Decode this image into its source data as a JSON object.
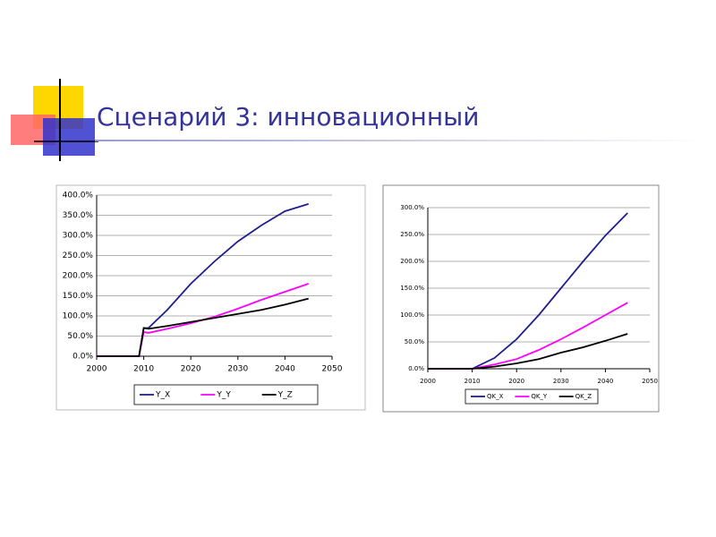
{
  "slide": {
    "title": "Сценарий 3: инновационный"
  },
  "chart_data": [
    {
      "type": "line",
      "grid": true,
      "x": [
        2000,
        2005,
        2009,
        2010,
        2011,
        2015,
        2020,
        2025,
        2030,
        2035,
        2040,
        2045
      ],
      "series": [
        {
          "name": "Y_X",
          "color": "#1f1f8f",
          "values": [
            0,
            0,
            0,
            70,
            70,
            115,
            180,
            235,
            285,
            325,
            360,
            378
          ]
        },
        {
          "name": "Y_Y",
          "color": "#ff00ff",
          "values": [
            0,
            0,
            0,
            60,
            58,
            68,
            82,
            98,
            118,
            140,
            160,
            180
          ]
        },
        {
          "name": "Y_Z",
          "color": "#000000",
          "values": [
            0,
            0,
            0,
            70,
            68,
            75,
            85,
            95,
            105,
            115,
            128,
            143
          ]
        }
      ],
      "xlim": [
        2000,
        2050
      ],
      "xticks": [
        2000,
        2010,
        2020,
        2030,
        2040,
        2050
      ],
      "ylim": [
        0,
        400
      ],
      "yticks": [
        {
          "value": 0,
          "label": "0.0%"
        },
        {
          "value": 50,
          "label": "50.0%"
        },
        {
          "value": 100,
          "label": "100.0%"
        },
        {
          "value": 150,
          "label": "150.0%"
        },
        {
          "value": 200,
          "label": "200.0%"
        },
        {
          "value": 250,
          "label": "250.0%"
        },
        {
          "value": 300,
          "label": "300.0%"
        },
        {
          "value": 350,
          "label": "350.0%"
        },
        {
          "value": 400,
          "label": "400.0%"
        }
      ],
      "legend": "bottom"
    },
    {
      "type": "line",
      "grid": true,
      "x": [
        2000,
        2005,
        2010,
        2015,
        2020,
        2025,
        2030,
        2035,
        2040,
        2045
      ],
      "series": [
        {
          "name": "QK_X",
          "color": "#1f1f8f",
          "values": [
            0,
            0,
            0,
            20,
            55,
            100,
            150,
            200,
            248,
            290
          ]
        },
        {
          "name": "QK_Y",
          "color": "#ff00ff",
          "values": [
            0,
            0,
            0,
            8,
            18,
            35,
            55,
            77,
            100,
            123
          ]
        },
        {
          "name": "QK_Z",
          "color": "#000000",
          "values": [
            0,
            0,
            0,
            4,
            10,
            18,
            30,
            40,
            52,
            65
          ]
        }
      ],
      "xlim": [
        2000,
        2050
      ],
      "xticks": [
        2000,
        2010,
        2020,
        2030,
        2040,
        2050
      ],
      "ylim": [
        0,
        300
      ],
      "yticks": [
        {
          "value": 0,
          "label": "0.0%"
        },
        {
          "value": 50,
          "label": "50.0%"
        },
        {
          "value": 100,
          "label": "100.0%"
        },
        {
          "value": 150,
          "label": "150.0%"
        },
        {
          "value": 200,
          "label": "200.0%"
        },
        {
          "value": 250,
          "label": "250.0%"
        },
        {
          "value": 300,
          "label": "300.0%"
        }
      ],
      "legend": "bottom"
    }
  ]
}
